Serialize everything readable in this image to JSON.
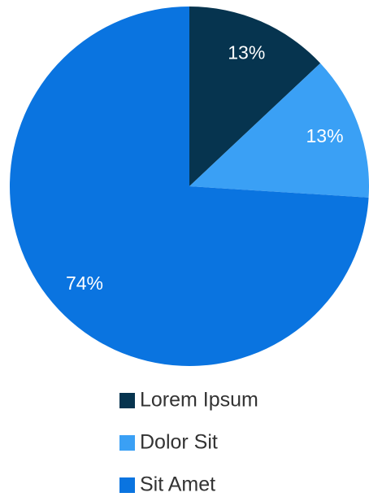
{
  "chart_data": {
    "type": "pie",
    "categories": [
      "Lorem Ipsum",
      "Dolor Sit",
      "Sit Amet"
    ],
    "values": [
      13,
      13,
      74
    ],
    "value_labels": [
      "13%",
      "13%",
      "74%"
    ],
    "colors": [
      "#06344f",
      "#3aa0f5",
      "#0a74e0"
    ]
  }
}
